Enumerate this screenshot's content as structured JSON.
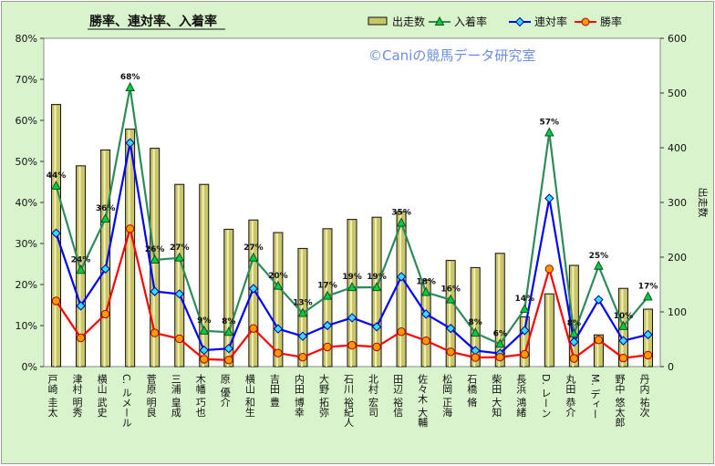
{
  "chart_data": {
    "type": "bar+line",
    "title": "勝率、連対率、入着率",
    "watermark": "©Caniの競馬データ研究室",
    "y2label": "出走数",
    "y_ticks": [
      "0%",
      "10%",
      "20%",
      "30%",
      "40%",
      "50%",
      "60%",
      "70%",
      "80%"
    ],
    "y2_ticks": [
      "0",
      "100",
      "200",
      "300",
      "400",
      "500",
      "600"
    ],
    "ylim": [
      0,
      80
    ],
    "y2lim": [
      0,
      600
    ],
    "categories": [
      "戸崎 圭太",
      "津村 明秀",
      "横山 武史",
      "C. ルメール",
      "菅原 明良",
      "三浦 皇成",
      "木幡 巧也",
      "原 優介",
      "横山 和生",
      "吉田 豊",
      "内田 博幸",
      "大野 拓弥",
      "石川 裕紀人",
      "北村 宏司",
      "田辺 裕信",
      "佐々木 大輔",
      "松岡 正海",
      "石橋 脩",
      "柴田 大知",
      "長浜 鴻緒",
      "D. レーン",
      "丸田 恭介",
      "M. ディー",
      "野中 悠太郎",
      "丹内 祐次"
    ],
    "series": [
      {
        "name": "出走数",
        "type": "bar",
        "axis": "right",
        "color": "#c8c56a",
        "values": [
          479,
          367,
          396,
          434,
          399,
          333,
          333,
          251,
          268,
          245,
          216,
          252,
          269,
          273,
          283,
          158,
          194,
          181,
          207,
          91,
          133,
          185,
          58,
          143,
          105
        ]
      },
      {
        "name": "入着率",
        "type": "line",
        "color": "#2e8b57",
        "marker": "triangle",
        "marker_color": "#00cc44",
        "values": [
          44,
          23.5,
          36,
          68,
          26,
          26.5,
          8.7,
          8.4,
          26.5,
          19.6,
          13,
          17.2,
          19.3,
          19.3,
          35,
          18.1,
          16.3,
          8.2,
          5.5,
          14,
          57,
          8,
          24.5,
          9.8,
          17
        ]
      },
      {
        "name": "連対率",
        "type": "line",
        "color": "#0000ff",
        "marker": "diamond",
        "marker_color": "#33ddff",
        "values": [
          32.5,
          14.8,
          23.8,
          54.5,
          18.3,
          17.7,
          4,
          4.4,
          19,
          9.2,
          7.4,
          10,
          11.9,
          9.7,
          21.9,
          12.8,
          9.3,
          3.9,
          3.2,
          8.8,
          41,
          6,
          16.3,
          6.3,
          7.8
        ]
      },
      {
        "name": "勝率",
        "type": "line",
        "color": "#ff0000",
        "marker": "circle",
        "marker_color": "#ff9900",
        "values": [
          16,
          7,
          12.8,
          33.6,
          8.2,
          6.8,
          1.8,
          1.6,
          9.3,
          3.3,
          2.3,
          4.8,
          5.2,
          4.8,
          8.5,
          6.3,
          3.6,
          2.2,
          2.3,
          3,
          23.8,
          2,
          6.5,
          2.1,
          2.8
        ]
      }
    ],
    "data_labels": [
      "44%",
      "24%",
      "36%",
      "68%",
      "26%",
      "27%",
      "9%",
      "8%",
      "27%",
      "20%",
      "13%",
      "17%",
      "19%",
      "19%",
      "35%",
      "18%",
      "16%",
      "8%",
      "6%",
      "14%",
      "57%",
      "8%",
      "25%",
      "10%",
      "17%"
    ],
    "legend_position": "top",
    "grid": false
  }
}
